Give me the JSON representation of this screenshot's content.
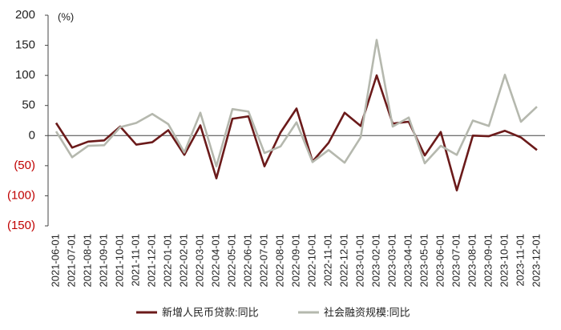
{
  "chart_data": {
    "type": "line",
    "y_axis_label": "(%)",
    "categories": [
      "2021-06-01",
      "2021-07-01",
      "2021-08-01",
      "2021-09-01",
      "2021-10-01",
      "2021-11-01",
      "2021-12-01",
      "2022-01-01",
      "2022-02-01",
      "2022-03-01",
      "2022-04-01",
      "2022-05-01",
      "2022-06-01",
      "2022-07-01",
      "2022-08-01",
      "2022-09-01",
      "2022-10-01",
      "2022-11-01",
      "2022-12-01",
      "2023-01-01",
      "2023-02-01",
      "2023-03-01",
      "2023-04-01",
      "2023-05-01",
      "2023-06-01",
      "2023-07-01",
      "2023-08-01",
      "2023-09-01",
      "2023-10-01",
      "2023-11-01",
      "2023-12-01"
    ],
    "series": [
      {
        "name": "新增人民币贷款:同比",
        "color": "#6b1a1a",
        "values": [
          21,
          -20,
          -10,
          -8,
          15,
          -15,
          -11,
          9,
          -32,
          17,
          -71,
          28,
          32,
          -51,
          5,
          45,
          -43,
          -12,
          38,
          16,
          100,
          20,
          23,
          -33,
          6,
          -91,
          0,
          -1,
          8,
          -3,
          -24
        ]
      },
      {
        "name": "社会融资规模:同比",
        "color": "#b5b8ae",
        "values": [
          7,
          -36,
          -17,
          -16,
          14,
          21,
          36,
          19,
          -28,
          38,
          -51,
          44,
          40,
          -29,
          -18,
          22,
          -44,
          -24,
          -45,
          -3,
          159,
          15,
          30,
          -46,
          -17,
          -32,
          25,
          16,
          101,
          23,
          48
        ]
      }
    ],
    "ylim": [
      -150,
      200
    ],
    "yticks": [
      {
        "value": -150,
        "label": "(150)"
      },
      {
        "value": -100,
        "label": "(100)"
      },
      {
        "value": -50,
        "label": "(50)"
      },
      0,
      50,
      100,
      150,
      200
    ],
    "negative_tick_color": "#c00000",
    "grid": false,
    "legend": "bottom"
  }
}
